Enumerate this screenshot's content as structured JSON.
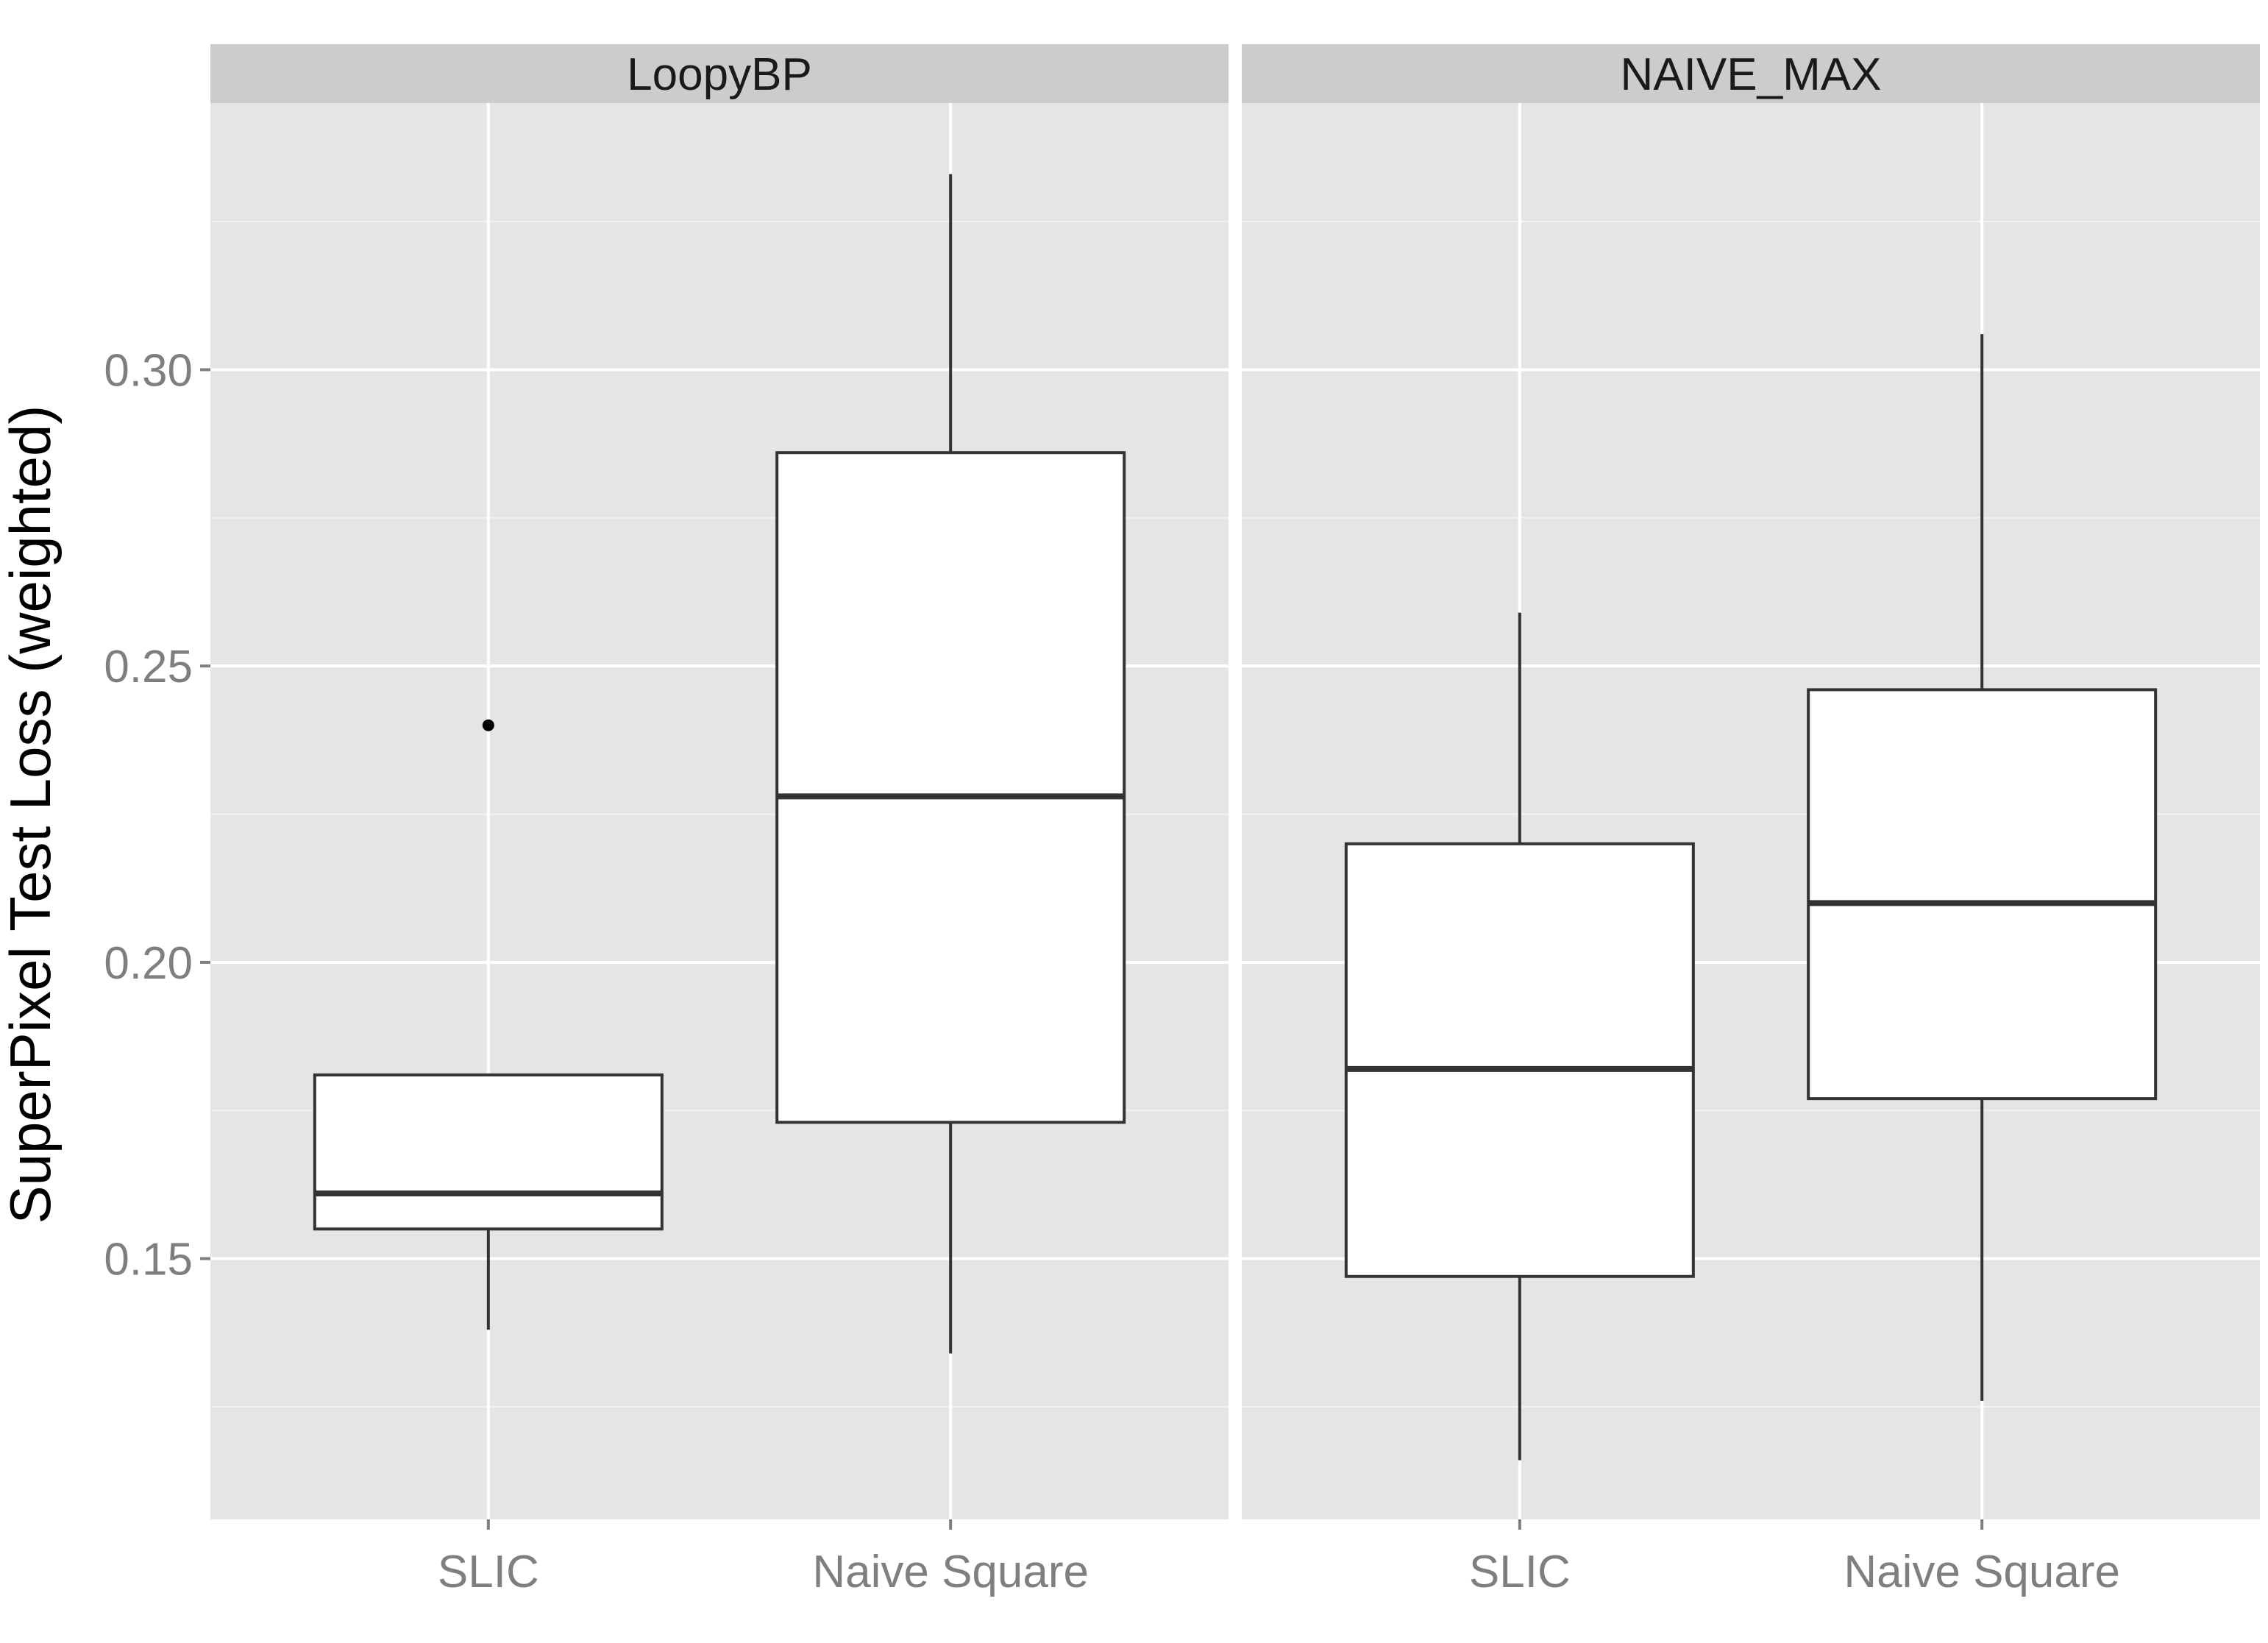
{
  "chart_data": {
    "type": "boxplot",
    "ylabel": "SuperPixel Test Loss (weighted)",
    "xlabel": "",
    "categories": [
      "SLIC",
      "Naive Square"
    ],
    "y_ticks": [
      "0.15",
      "0.20",
      "0.25",
      "0.30"
    ],
    "ylim": [
      0.106,
      0.345
    ],
    "grid": true,
    "panels": [
      {
        "name": "LoopyBP",
        "boxes": [
          {
            "category": "SLIC",
            "whisker_low": 0.138,
            "q1": 0.155,
            "median": 0.161,
            "q3": 0.181,
            "whisker_high": 0.181,
            "outliers": [
              0.24
            ]
          },
          {
            "category": "Naive Square",
            "whisker_low": 0.134,
            "q1": 0.173,
            "median": 0.228,
            "q3": 0.286,
            "whisker_high": 0.333,
            "outliers": []
          }
        ]
      },
      {
        "name": "NAIVE_MAX",
        "boxes": [
          {
            "category": "SLIC",
            "whisker_low": 0.116,
            "q1": 0.147,
            "median": 0.182,
            "q3": 0.22,
            "whisker_high": 0.259,
            "outliers": []
          },
          {
            "category": "Naive Square",
            "whisker_low": 0.126,
            "q1": 0.177,
            "median": 0.21,
            "q3": 0.246,
            "whisker_high": 0.306,
            "outliers": []
          }
        ]
      }
    ],
    "colors": {
      "panel_bg": "#e5e5e5",
      "strip_bg": "#cccccc",
      "grid_major": "#ffffff",
      "grid_minor": "#f2f2f2",
      "box_fill": "#ffffff",
      "box_line": "#333333"
    }
  }
}
